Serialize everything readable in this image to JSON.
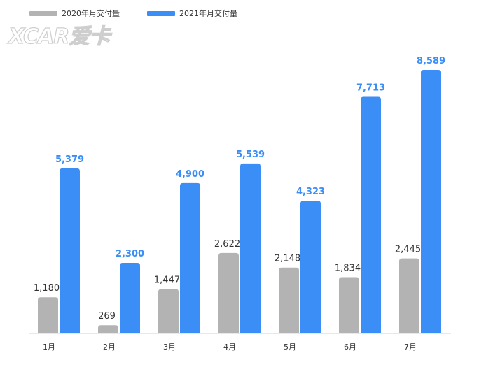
{
  "watermark": "XCAR爱卡",
  "chart_data": {
    "type": "bar",
    "categories": [
      "1月",
      "2月",
      "3月",
      "4月",
      "5月",
      "6月",
      "7月"
    ],
    "series": [
      {
        "name": "2020年月交付量",
        "color": "#b3b3b3",
        "values": [
          1180,
          269,
          1447,
          2622,
          2148,
          1834,
          2445
        ],
        "labels": [
          "1,180",
          "269",
          "1,447",
          "2,622",
          "2,148",
          "1,834",
          "2,445"
        ]
      },
      {
        "name": "2021年月交付量",
        "color": "#3a8ef6",
        "values": [
          5379,
          2300,
          4900,
          5539,
          4323,
          7713,
          8589
        ],
        "labels": [
          "5,379",
          "2,300",
          "4,900",
          "5,539",
          "4,323",
          "7,713",
          "8,589"
        ]
      }
    ],
    "ylim": [
      0,
      8589
    ],
    "grid": false,
    "legend": "top-left"
  }
}
